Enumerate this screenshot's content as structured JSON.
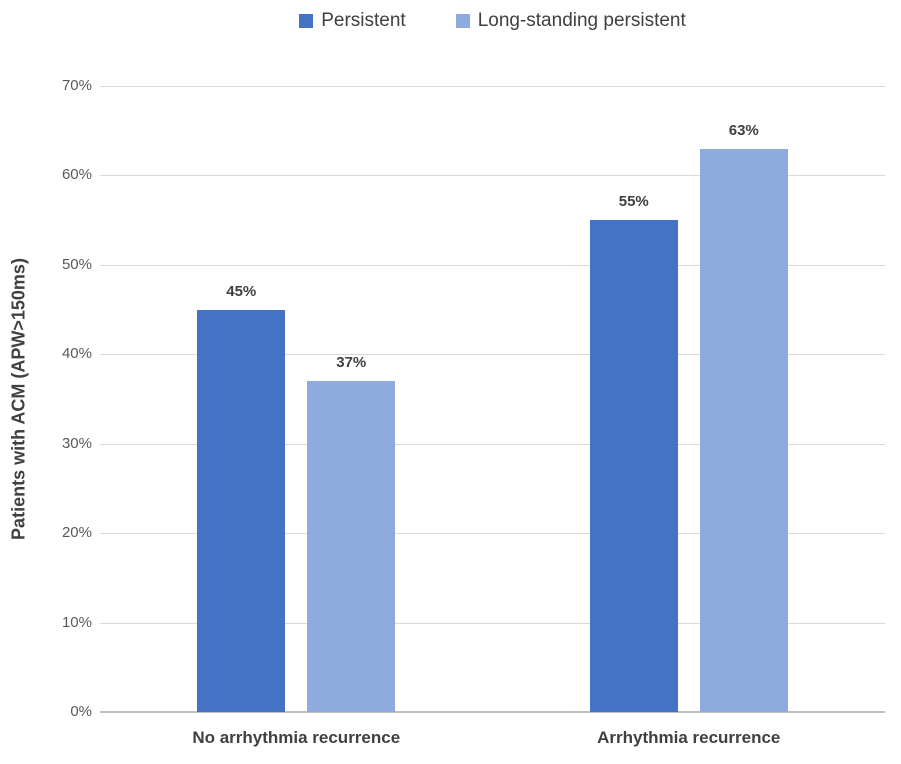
{
  "chart_data": {
    "type": "bar",
    "title": "",
    "categories": [
      "No arrhythmia recurrence",
      "Arrhythmia recurrence"
    ],
    "series": [
      {
        "name": "Persistent",
        "color": "#4472C4",
        "values": [
          45,
          55
        ],
        "labels": [
          "45%",
          "55%"
        ]
      },
      {
        "name": "Long-standing persistent",
        "color": "#8FAADC",
        "values": [
          37,
          63
        ],
        "labels": [
          "37%",
          "63%"
        ]
      }
    ],
    "xlabel": "",
    "ylabel": "Patients with ACM (APW>150ms)",
    "ylim": [
      0,
      70
    ],
    "yticks": [
      {
        "value": 0,
        "label": "0%"
      },
      {
        "value": 10,
        "label": "10%"
      },
      {
        "value": 20,
        "label": "20%"
      },
      {
        "value": 30,
        "label": "30%"
      },
      {
        "value": 40,
        "label": "40%"
      },
      {
        "value": 50,
        "label": "50%"
      },
      {
        "value": 60,
        "label": "60%"
      },
      {
        "value": 70,
        "label": "70%"
      }
    ],
    "grid": true,
    "legend_position": "top"
  },
  "colors": {
    "background": "#FFFFFF",
    "grid_line": "#D9D9D9",
    "axis_line": "#BFBFBF",
    "tick_text": "#595959",
    "label_text": "#404040",
    "series_persistent": "#4472C4",
    "series_long_standing": "#8FAADC"
  }
}
